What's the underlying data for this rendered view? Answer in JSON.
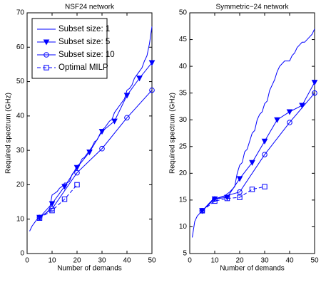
{
  "chart_data": [
    {
      "type": "line",
      "title": "NSF24 network",
      "xlabel": "Number of demands",
      "ylabel": "Required spectrum (GHz)",
      "xlim": [
        0,
        50
      ],
      "xticks": [
        0,
        10,
        20,
        30,
        40,
        50
      ],
      "ylim": [
        0,
        70
      ],
      "yticks": [
        0,
        10,
        20,
        30,
        40,
        50,
        60,
        70
      ],
      "grid": false,
      "legend": "upper left",
      "series": [
        {
          "name": "Subset size: 1",
          "color": "#0000ff",
          "marker": "none",
          "linestyle": "solid",
          "x": [
            1,
            2,
            3,
            4,
            5,
            6,
            7,
            8,
            9,
            10,
            11,
            12,
            13,
            14,
            15,
            16,
            17,
            18,
            19,
            20,
            21,
            22,
            23,
            24,
            25,
            26,
            27,
            28,
            29,
            30,
            31,
            32,
            33,
            34,
            35,
            36,
            37,
            38,
            39,
            40,
            41,
            42,
            43,
            44,
            45,
            46,
            47,
            48,
            49,
            50
          ],
          "values": [
            6.5,
            8,
            9,
            10,
            10.5,
            11,
            11.5,
            12,
            13,
            17,
            17.5,
            18,
            19,
            19.5,
            20.5,
            20.5,
            21,
            23,
            24,
            25.5,
            26,
            27.5,
            28,
            29,
            30,
            31,
            32.5,
            33,
            34.5,
            36,
            36.5,
            37.5,
            38.5,
            39,
            41,
            42,
            43,
            44,
            45,
            47.5,
            48,
            49,
            51,
            52,
            53,
            54,
            56,
            57.5,
            61,
            66
          ]
        },
        {
          "name": "Subset size: 5",
          "color": "#0000ff",
          "marker": "triangle-down",
          "linestyle": "solid",
          "x": [
            5,
            10,
            15,
            20,
            25,
            30,
            35,
            40,
            45,
            50
          ],
          "values": [
            10.5,
            14.5,
            19.5,
            25,
            29.5,
            35.5,
            38.5,
            46,
            51,
            55.5
          ]
        },
        {
          "name": "Subset size: 10",
          "color": "#0000ff",
          "marker": "circle",
          "linestyle": "solid",
          "x": [
            5,
            10,
            20,
            30,
            40,
            50
          ],
          "values": [
            10.5,
            13,
            23.5,
            30.5,
            39.5,
            47.5
          ]
        },
        {
          "name": "Optimal MILP",
          "color": "#0000ff",
          "marker": "square",
          "linestyle": "dashed",
          "x": [
            5,
            10,
            15,
            20
          ],
          "values": [
            10.3,
            12.5,
            15.8,
            20
          ]
        }
      ]
    },
    {
      "type": "line",
      "title": "Symmetric−24 network",
      "xlabel": "Number of demands",
      "ylabel": "Required spectrum (GHz)",
      "xlim": [
        0,
        50
      ],
      "xticks": [
        0,
        10,
        20,
        30,
        40,
        50
      ],
      "ylim": [
        5,
        50
      ],
      "yticks": [
        5,
        10,
        15,
        20,
        25,
        30,
        35,
        40,
        45,
        50
      ],
      "grid": false,
      "series": [
        {
          "color": "#0000ff",
          "marker": "none",
          "linestyle": "solid",
          "x": [
            1,
            2,
            3,
            4,
            5,
            6,
            7,
            8,
            9,
            10,
            12,
            14,
            16,
            18,
            19,
            20,
            21,
            22,
            23,
            24,
            25,
            26,
            27,
            28,
            29,
            30,
            31,
            32,
            33,
            34,
            35,
            36,
            37,
            38,
            39,
            40,
            41,
            42,
            43,
            44,
            45,
            46,
            47,
            48,
            49,
            50
          ],
          "values": [
            8,
            11,
            12,
            12.5,
            13,
            13.5,
            14,
            14.5,
            15,
            15.2,
            15.5,
            15.8,
            16.5,
            17.5,
            20,
            21.5,
            22,
            24,
            24.5,
            26,
            27.5,
            28,
            30,
            31,
            31.5,
            33,
            33.5,
            35.5,
            36.5,
            37.5,
            39,
            40,
            40.5,
            41,
            41,
            41,
            42,
            42.5,
            43.5,
            44,
            44.5,
            44.5,
            45,
            45.5,
            46,
            47
          ]
        },
        {
          "color": "#0000ff",
          "marker": "triangle-down",
          "linestyle": "solid",
          "x": [
            5,
            10,
            15,
            20,
            25,
            30,
            35,
            40,
            45,
            50
          ],
          "values": [
            13,
            15.2,
            15.5,
            19,
            22,
            26,
            30,
            31.5,
            32.7,
            37
          ]
        },
        {
          "color": "#0000ff",
          "marker": "circle",
          "linestyle": "solid",
          "x": [
            5,
            10,
            20,
            30,
            40,
            50
          ],
          "values": [
            13,
            15.2,
            16.5,
            23.5,
            29.5,
            35
          ]
        },
        {
          "color": "#0000ff",
          "marker": "square",
          "linestyle": "dashed",
          "x": [
            5,
            10,
            15,
            20,
            25,
            30
          ],
          "values": [
            13,
            14.8,
            15.3,
            15.5,
            17,
            17.5
          ]
        }
      ]
    }
  ]
}
